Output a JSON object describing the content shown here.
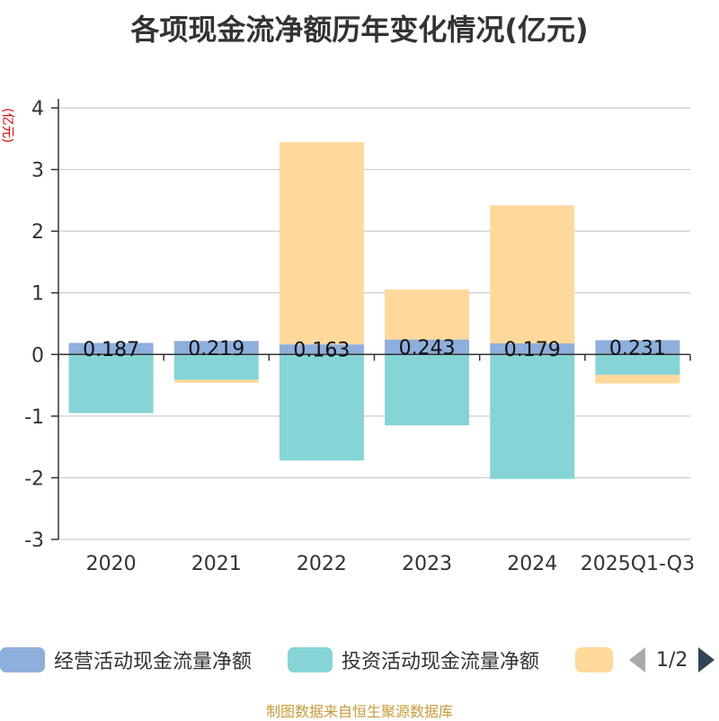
{
  "chart_data": {
    "type": "bar",
    "stacked": true,
    "title": "各项现金流净额历年变化情况(亿元)",
    "ylabel": "(亿元)",
    "xlabel": "",
    "ylim": [
      -3,
      4
    ],
    "yticks": [
      -3,
      -2,
      -1,
      0,
      1,
      2,
      3,
      4
    ],
    "grid": true,
    "categories": [
      "2020",
      "2021",
      "2022",
      "2023",
      "2024",
      "2025Q1-Q3"
    ],
    "series": [
      {
        "name": "经营活动现金流量净额",
        "color": "#8eaedc",
        "values": [
          0.187,
          0.219,
          0.163,
          0.243,
          0.179,
          0.231
        ],
        "data_labels": [
          "0.187",
          "0.219",
          "0.163",
          "0.243",
          "0.179",
          "0.231"
        ]
      },
      {
        "name": "投资活动现金流量净额",
        "color": "#86d4d6",
        "values": [
          -0.95,
          -0.41,
          -1.72,
          -1.15,
          -2.02,
          -0.33
        ]
      },
      {
        "name": "",
        "color": "#ffd99b",
        "values": [
          0,
          -0.05,
          3.28,
          0.81,
          2.24,
          -0.14
        ]
      }
    ],
    "legend": {
      "position": "bottom",
      "page": "1/2"
    }
  },
  "source": "制图数据来自恒生聚源数据库"
}
